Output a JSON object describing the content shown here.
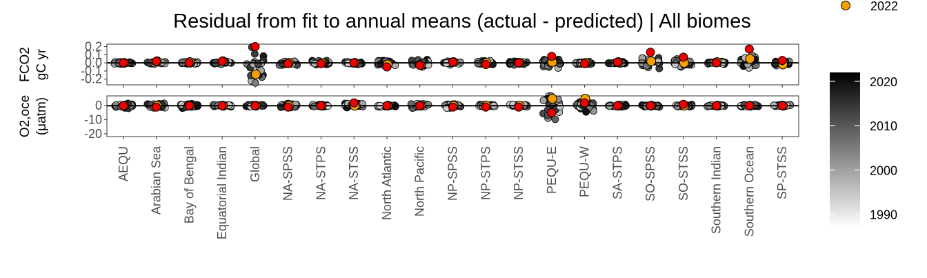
{
  "chart_data": {
    "type": "scatter",
    "title": "Residual from fit to annual means (actual - predicted) | All biomes",
    "categories": [
      "AEQU",
      "Arabian Sea",
      "Bay of Bengal",
      "Equatorial Indian",
      "Global",
      "NA-SPSS",
      "NA-STPS",
      "NA-STSS",
      "North Atlantic",
      "North Pacific",
      "NP-SPSS",
      "NP-STPS",
      "NP-STSS",
      "PEQU-E",
      "PEQU-W",
      "SA-STPS",
      "SO-SPSS",
      "SO-STSS",
      "Southern Indian",
      "Southern Ocean",
      "SP-STSS"
    ],
    "panels": [
      {
        "ylabel_lines": [
          "FCO2",
          "gC yr"
        ],
        "ylim": [
          -0.27,
          0.23
        ],
        "yticks": [
          -0.2,
          -0.1,
          0.0,
          0.1,
          0.2
        ],
        "ytick_labels": [
          "-0.2",
          "-0.1",
          "0.0",
          "0.1",
          "0.2"
        ],
        "highlight_2022": [
          0.0,
          0.02,
          0.01,
          0.02,
          -0.14,
          0.0,
          0.0,
          0.0,
          -0.02,
          -0.03,
          0.01,
          0.0,
          0.0,
          0.01,
          0.0,
          0.01,
          0.02,
          0.0,
          0.01,
          0.05,
          -0.02
        ],
        "latest_red": [
          0.0,
          0.02,
          0.0,
          0.02,
          0.2,
          -0.01,
          -0.01,
          0.0,
          -0.05,
          -0.03,
          0.01,
          -0.02,
          0.0,
          0.08,
          -0.01,
          0.01,
          0.13,
          0.07,
          0.0,
          0.17,
          0.03
        ],
        "spread": [
          0.02,
          0.02,
          0.02,
          0.02,
          0.27,
          0.03,
          0.03,
          0.02,
          0.05,
          0.06,
          0.03,
          0.03,
          0.03,
          0.07,
          0.02,
          0.02,
          0.08,
          0.06,
          0.02,
          0.1,
          0.06
        ]
      },
      {
        "ylabel_lines": [
          "O2,oce",
          "(μatm)"
        ],
        "ylim": [
          -22,
          7
        ],
        "yticks": [
          -20,
          -10,
          0
        ],
        "ytick_labels": [
          "-20",
          "-10",
          "0"
        ],
        "highlight_2022": [
          0,
          0,
          0,
          0,
          0,
          0,
          0,
          0,
          0,
          0,
          0,
          0,
          0,
          5,
          5,
          0,
          0,
          0,
          0,
          0,
          0
        ],
        "latest_red": [
          0,
          -1,
          0,
          0,
          0,
          -1,
          0,
          2,
          0,
          0,
          -1,
          -1,
          -1,
          -5,
          2,
          0,
          0,
          1,
          0,
          0,
          0
        ],
        "spread": [
          2,
          2,
          2,
          1,
          1,
          2,
          1,
          2,
          1,
          2,
          2,
          1,
          1,
          12,
          5,
          1,
          1,
          1,
          1,
          1,
          1
        ]
      }
    ],
    "colorbar": {
      "label_ticks": [
        1990,
        2000,
        2010,
        2020
      ],
      "range": [
        1987,
        2022
      ],
      "colors": [
        "#ffffff",
        "#000000"
      ]
    },
    "legend": {
      "label": "2022",
      "color": "#f5a000"
    },
    "colors": {
      "red": "#ee0000",
      "orange": "#f5a000",
      "zero_line": "#000000"
    }
  }
}
